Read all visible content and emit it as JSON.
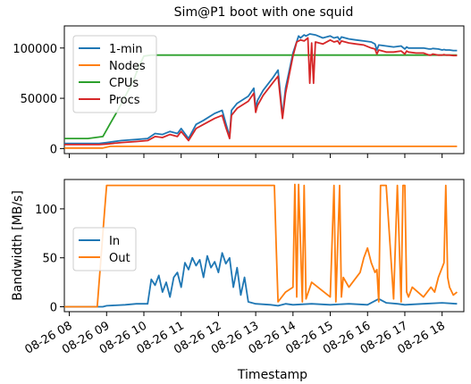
{
  "title": "Sim@P1 boot with one squid",
  "xlabel": "Timestamp",
  "x_ticks": [
    "08-26 08",
    "08-26 09",
    "08-26 10",
    "08-26 11",
    "08-26 12",
    "08-26 13",
    "08-26 14",
    "08-26 15",
    "08-26 16",
    "08-26 17",
    "08-26 18"
  ],
  "colors": {
    "blue": "#1f77b4",
    "orange": "#ff7f0e",
    "green": "#2ca02c",
    "red": "#d62728"
  },
  "chart_data": [
    {
      "type": "line",
      "title": "Sim@P1 boot with one squid",
      "xlabel": "",
      "ylabel": "",
      "x_range": [
        "08-26 07:52",
        "08-26 18:35"
      ],
      "ylim": [
        -5000,
        122000
      ],
      "y_ticks": [
        0,
        50000,
        100000
      ],
      "y_tick_labels": [
        "0",
        "50000",
        "100000"
      ],
      "legend": "top-left",
      "grid": false,
      "x_unit": "hour of 08-26",
      "series": [
        {
          "name": "1-min",
          "color": "#1f77b4",
          "x": [
            7.87,
            8.8,
            9.0,
            9.4,
            9.8,
            10.1,
            10.3,
            10.5,
            10.7,
            10.9,
            11.0,
            11.2,
            11.4,
            11.6,
            11.9,
            12.1,
            12.2,
            12.3,
            12.35,
            12.5,
            12.8,
            12.95,
            13.0,
            13.05,
            13.2,
            13.45,
            13.6,
            13.7,
            13.72,
            13.8,
            14.0,
            14.15,
            14.2,
            14.3,
            14.35,
            14.45,
            14.6,
            14.8,
            15.0,
            15.1,
            15.2,
            15.25,
            15.3,
            15.5,
            15.7,
            15.9,
            16.1,
            16.2,
            16.25,
            16.3,
            16.5,
            16.7,
            16.9,
            17.0,
            17.05,
            17.1,
            17.3,
            17.5,
            17.65,
            17.7,
            17.75,
            17.9,
            18.0,
            18.05,
            18.1,
            18.2,
            18.3,
            18.4
          ],
          "y": [
            5000,
            5000,
            6000,
            8000,
            9000,
            10000,
            15000,
            14000,
            17000,
            15000,
            20000,
            10000,
            24000,
            28000,
            35000,
            38000,
            25000,
            12000,
            38000,
            45000,
            52000,
            60000,
            40000,
            48000,
            58000,
            70000,
            78000,
            40000,
            32000,
            60000,
            95000,
            112000,
            110000,
            113000,
            112000,
            114000,
            113000,
            110000,
            112000,
            110000,
            111000,
            108000,
            111000,
            109000,
            108000,
            107000,
            106000,
            104000,
            98000,
            103000,
            102000,
            101000,
            102000,
            99000,
            101000,
            100000,
            100000,
            100000,
            99000,
            99000,
            99500,
            99000,
            98000,
            98500,
            98000,
            98000,
            97500,
            97500
          ]
        },
        {
          "name": "Nodes",
          "color": "#ff7f0e",
          "x": [
            7.87,
            8.9,
            9.1,
            18.4
          ],
          "y": [
            500,
            500,
            2200,
            2200
          ]
        },
        {
          "name": "CPUs",
          "color": "#2ca02c",
          "x": [
            7.87,
            8.5,
            8.9,
            9.1,
            9.3,
            9.5,
            9.7,
            9.85,
            10.0,
            10.2,
            18.4
          ],
          "y": [
            10000,
            10000,
            12000,
            25000,
            38000,
            52000,
            66000,
            80000,
            92000,
            93000,
            93000
          ]
        },
        {
          "name": "Procs",
          "color": "#d62728",
          "x": [
            7.87,
            8.8,
            9.0,
            9.4,
            9.8,
            10.1,
            10.3,
            10.5,
            10.7,
            10.9,
            11.0,
            11.2,
            11.4,
            11.6,
            11.9,
            12.1,
            12.2,
            12.3,
            12.35,
            12.5,
            12.8,
            12.95,
            13.0,
            13.05,
            13.2,
            13.45,
            13.6,
            13.7,
            13.72,
            13.8,
            14.0,
            14.1,
            14.2,
            14.3,
            14.4,
            14.45,
            14.5,
            14.55,
            14.6,
            14.8,
            15.0,
            15.1,
            15.2,
            15.25,
            15.3,
            15.5,
            15.7,
            15.9,
            16.1,
            16.2,
            16.25,
            16.3,
            16.5,
            16.7,
            16.9,
            17.0,
            17.05,
            17.1,
            17.3,
            17.5,
            17.65,
            17.7,
            17.75,
            17.9,
            18.0,
            18.05,
            18.1,
            18.2,
            18.3,
            18.4
          ],
          "y": [
            4000,
            4000,
            4500,
            6000,
            7000,
            8000,
            12000,
            11000,
            14000,
            12000,
            17000,
            8000,
            20000,
            24000,
            30000,
            33000,
            21000,
            10000,
            33000,
            40000,
            47000,
            55000,
            36000,
            43000,
            53000,
            65000,
            72000,
            36000,
            30000,
            55000,
            92000,
            106000,
            108000,
            107000,
            110000,
            65000,
            105000,
            65000,
            106000,
            104000,
            108000,
            106000,
            107000,
            104000,
            107000,
            105000,
            104000,
            103000,
            100000,
            99000,
            94000,
            98000,
            96000,
            96000,
            97000,
            94000,
            97000,
            96000,
            95000,
            95000,
            93000,
            93000,
            94000,
            93000,
            93000,
            93500,
            93000,
            93000,
            92500,
            92500
          ]
        }
      ]
    },
    {
      "type": "line",
      "title": "",
      "xlabel": "Timestamp",
      "ylabel": "Bandwidth [MB/s]",
      "x_range": [
        "08-26 07:52",
        "08-26 18:35"
      ],
      "ylim": [
        -5,
        130
      ],
      "y_ticks": [
        0,
        50,
        100
      ],
      "y_tick_labels": [
        "0",
        "50",
        "100"
      ],
      "legend": "center-left",
      "grid": false,
      "x_unit": "hour of 08-26",
      "series": [
        {
          "name": "In",
          "color": "#1f77b4",
          "x": [
            7.87,
            8.9,
            9.0,
            9.5,
            9.8,
            10.1,
            10.2,
            10.3,
            10.4,
            10.5,
            10.6,
            10.7,
            10.8,
            10.9,
            11.0,
            11.1,
            11.2,
            11.3,
            11.4,
            11.5,
            11.6,
            11.7,
            11.8,
            11.9,
            12.0,
            12.1,
            12.2,
            12.3,
            12.4,
            12.5,
            12.6,
            12.7,
            12.8,
            13.0,
            13.4,
            13.6,
            13.8,
            14.0,
            14.5,
            15.0,
            15.5,
            16.0,
            16.3,
            16.5,
            16.8,
            17.0,
            17.5,
            18.0,
            18.4
          ],
          "y": [
            0,
            0,
            1,
            2,
            3,
            3,
            28,
            22,
            32,
            15,
            25,
            10,
            30,
            35,
            20,
            45,
            38,
            50,
            42,
            48,
            30,
            52,
            40,
            46,
            35,
            55,
            44,
            50,
            20,
            40,
            12,
            30,
            5,
            3,
            2,
            1,
            3,
            2,
            3,
            2,
            3,
            2,
            8,
            4,
            3,
            2,
            3,
            4,
            3
          ]
        },
        {
          "name": "Out",
          "color": "#ff7f0e",
          "x": [
            7.87,
            8.75,
            8.85,
            8.95,
            9.0,
            13.5,
            13.55,
            13.6,
            13.8,
            14.0,
            14.05,
            14.1,
            14.15,
            14.25,
            14.3,
            14.35,
            14.5,
            15.0,
            15.1,
            15.15,
            15.25,
            15.3,
            15.35,
            15.5,
            15.8,
            15.9,
            16.0,
            16.1,
            16.2,
            16.25,
            16.3,
            16.35,
            16.5,
            16.7,
            16.8,
            16.9,
            16.95,
            17.0,
            17.05,
            17.1,
            17.15,
            17.2,
            17.5,
            17.7,
            17.8,
            17.9,
            18.0,
            18.05,
            18.1,
            18.15,
            18.2,
            18.3,
            18.4
          ],
          "y": [
            0,
            0,
            50,
            100,
            124,
            124,
            60,
            5,
            15,
            20,
            125,
            10,
            125,
            5,
            124,
            8,
            25,
            10,
            124,
            5,
            124,
            10,
            30,
            20,
            35,
            50,
            60,
            45,
            35,
            38,
            5,
            124,
            124,
            8,
            124,
            5,
            124,
            124,
            15,
            10,
            15,
            20,
            10,
            20,
            15,
            30,
            40,
            45,
            124,
            30,
            20,
            12,
            15
          ]
        }
      ]
    }
  ]
}
